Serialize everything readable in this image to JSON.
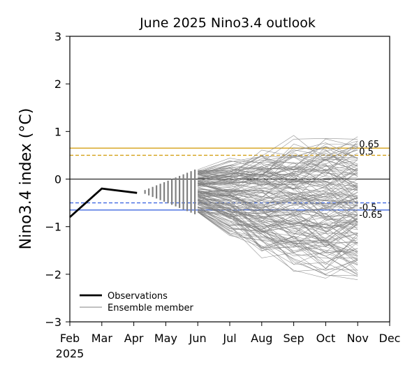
{
  "chart_data": {
    "type": "line",
    "title": "June 2025 Nino3.4 outlook",
    "ylabel": "Nino3.4 index (°C)",
    "xlabel": "",
    "ylim": [
      -3,
      3
    ],
    "yticks": [
      3,
      2,
      1,
      0,
      -1,
      -2,
      -3
    ],
    "ytick_labels": [
      "3",
      "2",
      "1",
      "0",
      "−1",
      "−2",
      "−3"
    ],
    "xlim": [
      0,
      10
    ],
    "xticks": [
      0,
      1,
      2,
      3,
      4,
      5,
      6,
      7,
      8,
      9,
      10
    ],
    "xtick_labels": [
      "Feb",
      "Mar",
      "Apr",
      "May",
      "Jun",
      "Jul",
      "Aug",
      "Sep",
      "Oct",
      "Nov",
      "Dec"
    ],
    "x_year_label": "2025",
    "grid": false,
    "legend": {
      "placement": "bottom-left",
      "entries": [
        {
          "label": "Observations",
          "color": "#000000"
        },
        {
          "label": "Ensemble member",
          "color": "#808080"
        }
      ]
    },
    "observations": {
      "name": "Observations",
      "x": [
        0,
        1,
        2.1
      ],
      "y": [
        -0.8,
        -0.2,
        -0.29
      ]
    },
    "ensemble": {
      "name": "Ensemble member",
      "members": 160,
      "x": [
        4,
        5,
        6,
        7,
        8,
        9
      ],
      "spread_envelope": {
        "upper": [
          0.25,
          0.55,
          0.85,
          1.05,
          1.15,
          1.1
        ],
        "lower": [
          -0.75,
          -1.25,
          -1.75,
          -2.05,
          -2.3,
          -2.3
        ]
      },
      "center": [
        -0.25,
        -0.28,
        -0.35,
        -0.42,
        -0.48,
        -0.5
      ]
    },
    "reference_lines": [
      {
        "value": 0.65,
        "label": "0.65",
        "style": "solid",
        "color": "#D4A017"
      },
      {
        "value": 0.5,
        "label": "0.5",
        "style": "dashed",
        "color": "#D4A017"
      },
      {
        "value": 0,
        "label": "",
        "style": "solid",
        "color": "#000000"
      },
      {
        "value": -0.5,
        "label": "-0.5",
        "style": "dashed",
        "color": "#4169E1"
      },
      {
        "value": -0.65,
        "label": "-0.65",
        "style": "solid",
        "color": "#4169E1"
      }
    ],
    "colors": {
      "warm": "#D4A017",
      "cool": "#4169E1",
      "observations": "#000000",
      "ensemble": "#808080"
    }
  }
}
